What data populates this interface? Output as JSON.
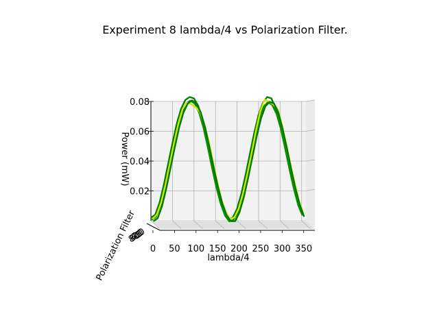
{
  "chart_data": {
    "type": "surface",
    "title": "Experiment 8 lambda/4 vs Polarization Filter.",
    "xlabel": "lambda/4",
    "ylabel": "Polarization Filter",
    "zlabel": "Power (mW)",
    "x_ticks": [
      "0",
      "50",
      "100",
      "150",
      "200",
      "250",
      "300",
      "350"
    ],
    "z_ticks": [
      "0.02",
      "0.04",
      "0.06",
      "0.08"
    ],
    "y_ticks": [
      "0",
      "20",
      "40",
      "60",
      "80"
    ],
    "xlim": [
      0,
      360
    ],
    "zlim": [
      0,
      0.08
    ],
    "grid": true,
    "x": [
      0,
      10,
      20,
      30,
      40,
      50,
      60,
      70,
      80,
      90,
      100,
      110,
      120,
      130,
      140,
      150,
      160,
      170,
      180,
      190,
      200,
      210,
      220,
      230,
      240,
      250,
      260,
      270,
      280,
      290,
      300,
      310,
      320,
      330,
      340,
      350
    ],
    "series": [
      {
        "values": [
          0.002,
          0.004,
          0.012,
          0.024,
          0.038,
          0.052,
          0.065,
          0.075,
          0.081,
          0.083,
          0.082,
          0.077,
          0.067,
          0.054,
          0.04,
          0.026,
          0.014,
          0.006,
          0.001,
          0.002,
          0.008,
          0.018,
          0.031,
          0.045,
          0.059,
          0.071,
          0.079,
          0.083,
          0.082,
          0.075,
          0.064,
          0.051,
          0.037,
          0.024,
          0.013,
          0.005
        ],
        "color": "#008000"
      },
      {
        "values": [
          0.001,
          0.003,
          0.01,
          0.022,
          0.036,
          0.05,
          0.063,
          0.073,
          0.079,
          0.081,
          0.079,
          0.073,
          0.063,
          0.05,
          0.036,
          0.023,
          0.012,
          0.004,
          0.0,
          0.001,
          0.006,
          0.016,
          0.029,
          0.043,
          0.057,
          0.069,
          0.077,
          0.08,
          0.078,
          0.072,
          0.062,
          0.049,
          0.035,
          0.022,
          0.011,
          0.004
        ],
        "color": "#0a8f00"
      },
      {
        "values": [
          0.002,
          0.005,
          0.013,
          0.025,
          0.039,
          0.053,
          0.066,
          0.076,
          0.08,
          0.079,
          0.077,
          0.074,
          0.066,
          0.055,
          0.041,
          0.027,
          0.015,
          0.007,
          0.002,
          0.003,
          0.009,
          0.019,
          0.032,
          0.046,
          0.061,
          0.074,
          0.082,
          0.081,
          0.079,
          0.076,
          0.066,
          0.053,
          0.039,
          0.026,
          0.014,
          0.006
        ],
        "color": "#d4e600"
      },
      {
        "values": [
          0.001,
          0.003,
          0.011,
          0.023,
          0.037,
          0.051,
          0.064,
          0.074,
          0.08,
          0.082,
          0.08,
          0.074,
          0.064,
          0.051,
          0.037,
          0.024,
          0.013,
          0.005,
          0.001,
          0.001,
          0.007,
          0.017,
          0.03,
          0.044,
          0.058,
          0.07,
          0.078,
          0.081,
          0.08,
          0.074,
          0.063,
          0.05,
          0.036,
          0.023,
          0.012,
          0.004
        ],
        "color": "#007a00"
      }
    ]
  }
}
